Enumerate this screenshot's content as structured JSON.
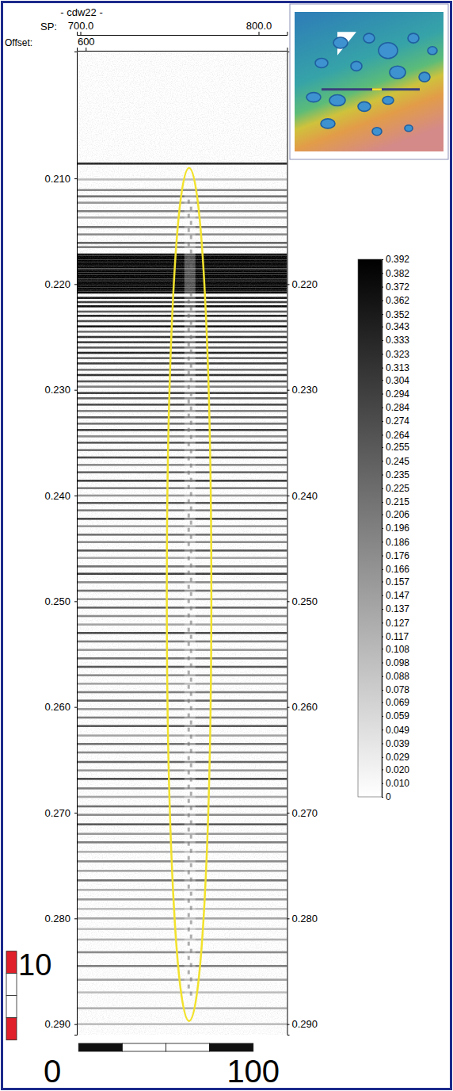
{
  "chart_data": {
    "type": "seismic",
    "title": "- cdw22 -",
    "x_label": "SP:",
    "x2_label": "Offset:",
    "xlim": [
      698,
      816
    ],
    "xticks": [
      {
        "value": 700,
        "label": "700.0"
      },
      {
        "value": 800,
        "label": "800.0"
      }
    ],
    "x2lim": [
      595,
      713
    ],
    "x2ticks": [
      600
    ],
    "ylim": [
      0.198,
      0.291
    ],
    "yticks": [
      {
        "value": 0.21,
        "label": "0.210"
      },
      {
        "value": 0.22,
        "label": "0.220"
      },
      {
        "value": 0.23,
        "label": "0.230"
      },
      {
        "value": 0.24,
        "label": "0.240"
      },
      {
        "value": 0.25,
        "label": "0.250"
      },
      {
        "value": 0.26,
        "label": "0.260"
      },
      {
        "value": 0.27,
        "label": "0.270"
      },
      {
        "value": 0.28,
        "label": "0.280"
      },
      {
        "value": 0.29,
        "label": "0.290"
      }
    ],
    "colorbar": {
      "range": [
        0,
        0.392
      ],
      "ticks": [
        0.392,
        0.382,
        0.372,
        0.362,
        0.352,
        0.343,
        0.333,
        0.323,
        0.313,
        0.304,
        0.294,
        0.284,
        0.274,
        0.264,
        0.255,
        0.245,
        0.235,
        0.225,
        0.215,
        0.206,
        0.196,
        0.186,
        0.176,
        0.166,
        0.157,
        0.147,
        0.137,
        0.127,
        0.117,
        0.108,
        0.098,
        0.088,
        0.078,
        0.069,
        0.059,
        0.049,
        0.039,
        0.029,
        {
          "value": 0.02,
          "label": "0.020"
        },
        {
          "value": 0.01,
          "label": "0.010"
        },
        0
      ]
    },
    "reflectors": [
      {
        "time": 0.2086,
        "amplitude": 0.33
      },
      {
        "time": 0.2101,
        "amplitude": 0.1
      },
      {
        "time": 0.2111,
        "amplitude": 0.18
      },
      {
        "time": 0.2117,
        "amplitude": 0.22
      },
      {
        "time": 0.2123,
        "amplitude": 0.16
      },
      {
        "time": 0.2131,
        "amplitude": 0.2
      },
      {
        "time": 0.2137,
        "amplitude": 0.14
      },
      {
        "time": 0.2146,
        "amplitude": 0.22
      },
      {
        "time": 0.2153,
        "amplitude": 0.18
      },
      {
        "time": 0.2161,
        "amplitude": 0.24
      },
      {
        "time": 0.2165,
        "amplitude": 0.2
      },
      {
        "time": 0.2172,
        "amplitude": 0.36
      },
      {
        "time": 0.2174,
        "amplitude": 0.392
      },
      {
        "time": 0.2176,
        "amplitude": 0.392
      },
      {
        "time": 0.2178,
        "amplitude": 0.392
      },
      {
        "time": 0.218,
        "amplitude": 0.392
      },
      {
        "time": 0.2182,
        "amplitude": 0.392
      },
      {
        "time": 0.2184,
        "amplitude": 0.392
      },
      {
        "time": 0.2186,
        "amplitude": 0.33
      },
      {
        "time": 0.2188,
        "amplitude": 0.392
      },
      {
        "time": 0.219,
        "amplitude": 0.392
      },
      {
        "time": 0.2192,
        "amplitude": 0.392
      },
      {
        "time": 0.2194,
        "amplitude": 0.392
      },
      {
        "time": 0.2196,
        "amplitude": 0.36
      },
      {
        "time": 0.2198,
        "amplitude": 0.392
      },
      {
        "time": 0.22,
        "amplitude": 0.392
      },
      {
        "time": 0.2202,
        "amplitude": 0.392
      },
      {
        "time": 0.2204,
        "amplitude": 0.392
      },
      {
        "time": 0.2206,
        "amplitude": 0.36
      },
      {
        "time": 0.2208,
        "amplitude": 0.392
      },
      {
        "time": 0.2213,
        "amplitude": 0.36
      },
      {
        "time": 0.2217,
        "amplitude": 0.3
      },
      {
        "time": 0.2221,
        "amplitude": 0.38
      },
      {
        "time": 0.2226,
        "amplitude": 0.25
      },
      {
        "time": 0.223,
        "amplitude": 0.34
      },
      {
        "time": 0.2235,
        "amplitude": 0.28
      },
      {
        "time": 0.224,
        "amplitude": 0.36
      },
      {
        "time": 0.2245,
        "amplitude": 0.22
      },
      {
        "time": 0.225,
        "amplitude": 0.32
      },
      {
        "time": 0.2255,
        "amplitude": 0.3
      },
      {
        "time": 0.226,
        "amplitude": 0.26
      },
      {
        "time": 0.2265,
        "amplitude": 0.34
      },
      {
        "time": 0.227,
        "amplitude": 0.24
      },
      {
        "time": 0.2275,
        "amplitude": 0.3
      },
      {
        "time": 0.2281,
        "amplitude": 0.22
      },
      {
        "time": 0.2286,
        "amplitude": 0.32
      },
      {
        "time": 0.2292,
        "amplitude": 0.26
      },
      {
        "time": 0.2297,
        "amplitude": 0.2
      },
      {
        "time": 0.2303,
        "amplitude": 0.3
      },
      {
        "time": 0.2308,
        "amplitude": 0.24
      },
      {
        "time": 0.2314,
        "amplitude": 0.28
      },
      {
        "time": 0.232,
        "amplitude": 0.2
      },
      {
        "time": 0.2326,
        "amplitude": 0.26
      },
      {
        "time": 0.2332,
        "amplitude": 0.22
      },
      {
        "time": 0.2338,
        "amplitude": 0.3
      },
      {
        "time": 0.2344,
        "amplitude": 0.18
      },
      {
        "time": 0.235,
        "amplitude": 0.26
      },
      {
        "time": 0.2357,
        "amplitude": 0.22
      },
      {
        "time": 0.2364,
        "amplitude": 0.28
      },
      {
        "time": 0.2371,
        "amplitude": 0.18
      },
      {
        "time": 0.2378,
        "amplitude": 0.24
      },
      {
        "time": 0.2386,
        "amplitude": 0.3
      },
      {
        "time": 0.2393,
        "amplitude": 0.2
      },
      {
        "time": 0.24,
        "amplitude": 0.16
      },
      {
        "time": 0.2407,
        "amplitude": 0.26
      },
      {
        "time": 0.2414,
        "amplitude": 0.2
      },
      {
        "time": 0.2422,
        "amplitude": 0.28
      },
      {
        "time": 0.2429,
        "amplitude": 0.16
      },
      {
        "time": 0.2437,
        "amplitude": 0.22
      },
      {
        "time": 0.2444,
        "amplitude": 0.18
      },
      {
        "time": 0.2452,
        "amplitude": 0.26
      },
      {
        "time": 0.2459,
        "amplitude": 0.14
      },
      {
        "time": 0.2467,
        "amplitude": 0.22
      },
      {
        "time": 0.2474,
        "amplitude": 0.3
      },
      {
        "time": 0.2482,
        "amplitude": 0.18
      },
      {
        "time": 0.249,
        "amplitude": 0.22
      },
      {
        "time": 0.2498,
        "amplitude": 0.16
      },
      {
        "time": 0.2506,
        "amplitude": 0.24
      },
      {
        "time": 0.2514,
        "amplitude": 0.18
      },
      {
        "time": 0.2522,
        "amplitude": 0.14
      },
      {
        "time": 0.253,
        "amplitude": 0.28
      },
      {
        "time": 0.2538,
        "amplitude": 0.2
      },
      {
        "time": 0.2546,
        "amplitude": 0.16
      },
      {
        "time": 0.2554,
        "amplitude": 0.22
      },
      {
        "time": 0.2562,
        "amplitude": 0.26
      },
      {
        "time": 0.257,
        "amplitude": 0.18
      },
      {
        "time": 0.2578,
        "amplitude": 0.14
      },
      {
        "time": 0.2586,
        "amplitude": 0.2
      },
      {
        "time": 0.2594,
        "amplitude": 0.24
      },
      {
        "time": 0.2602,
        "amplitude": 0.16
      },
      {
        "time": 0.261,
        "amplitude": 0.2
      },
      {
        "time": 0.2618,
        "amplitude": 0.26
      },
      {
        "time": 0.2627,
        "amplitude": 0.14
      },
      {
        "time": 0.2635,
        "amplitude": 0.22
      },
      {
        "time": 0.2643,
        "amplitude": 0.18
      },
      {
        "time": 0.2652,
        "amplitude": 0.24
      },
      {
        "time": 0.266,
        "amplitude": 0.16
      },
      {
        "time": 0.2668,
        "amplitude": 0.28
      },
      {
        "time": 0.2677,
        "amplitude": 0.2
      },
      {
        "time": 0.2685,
        "amplitude": 0.14
      },
      {
        "time": 0.2694,
        "amplitude": 0.22
      },
      {
        "time": 0.2702,
        "amplitude": 0.18
      },
      {
        "time": 0.2711,
        "amplitude": 0.26
      },
      {
        "time": 0.272,
        "amplitude": 0.16
      },
      {
        "time": 0.2728,
        "amplitude": 0.2
      },
      {
        "time": 0.2737,
        "amplitude": 0.12
      },
      {
        "time": 0.2746,
        "amplitude": 0.18
      },
      {
        "time": 0.2755,
        "amplitude": 0.14
      },
      {
        "time": 0.2764,
        "amplitude": 0.22
      },
      {
        "time": 0.2773,
        "amplitude": 0.12
      },
      {
        "time": 0.2782,
        "amplitude": 0.16
      },
      {
        "time": 0.2791,
        "amplitude": 0.1
      },
      {
        "time": 0.28,
        "amplitude": 0.14
      },
      {
        "time": 0.281,
        "amplitude": 0.1
      },
      {
        "time": 0.282,
        "amplitude": 0.12
      },
      {
        "time": 0.2832,
        "amplitude": 0.18
      },
      {
        "time": 0.2845,
        "amplitude": 0.2
      },
      {
        "time": 0.2858,
        "amplitude": 0.14
      },
      {
        "time": 0.287,
        "amplitude": 0.1
      },
      {
        "time": 0.2885,
        "amplitude": 0.12
      },
      {
        "time": 0.29,
        "amplitude": 0.1
      }
    ],
    "annotation": {
      "sp": 761,
      "sp_half_width": 12.5,
      "time_top": 0.209,
      "time_bottom": 0.2897,
      "color": "#f2e22c"
    },
    "scale_bars": {
      "vertical": {
        "label": "10",
        "time_range": [
          0.2831,
          0.2915
        ]
      },
      "horizontal": {
        "start_label": "0",
        "end_label": "100",
        "sp_range": [
          699,
          797
        ]
      }
    }
  }
}
